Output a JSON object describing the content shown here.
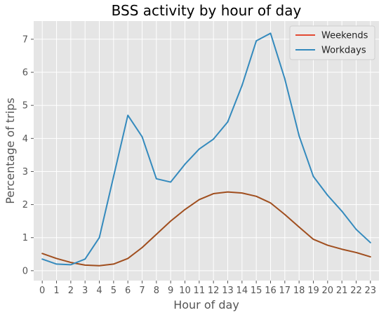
{
  "chart_data": {
    "type": "line",
    "title": "BSS activity by hour of day",
    "xlabel": "Hour of day",
    "ylabel": "Percentage of trips",
    "x": [
      0,
      1,
      2,
      3,
      4,
      5,
      6,
      7,
      8,
      9,
      10,
      11,
      12,
      13,
      14,
      15,
      16,
      17,
      18,
      19,
      20,
      21,
      22,
      23
    ],
    "xticks": [
      "0",
      "1",
      "2",
      "3",
      "4",
      "5",
      "6",
      "7",
      "8",
      "9",
      "10",
      "11",
      "12",
      "13",
      "14",
      "15",
      "16",
      "17",
      "18",
      "19",
      "20",
      "21",
      "22",
      "23"
    ],
    "yticks": [
      0,
      1,
      2,
      3,
      4,
      5,
      6,
      7
    ],
    "ylim": [
      -0.3,
      7.55
    ],
    "xlim": [
      -0.6,
      23.6
    ],
    "grid": true,
    "legend_position": "top-right",
    "series": [
      {
        "name": "Weekends",
        "color": "#E24A33",
        "values": [
          0.52,
          0.37,
          0.25,
          0.17,
          0.15,
          0.2,
          0.37,
          0.7,
          1.1,
          1.5,
          1.85,
          2.15,
          2.33,
          2.38,
          2.35,
          2.25,
          2.05,
          1.7,
          1.32,
          0.95,
          0.77,
          0.65,
          0.55,
          0.42
        ]
      },
      {
        "name": "Workdays",
        "color": "#348ABD",
        "values": [
          0.35,
          0.2,
          0.18,
          0.35,
          1.0,
          2.85,
          4.7,
          4.05,
          2.78,
          2.68,
          3.22,
          3.68,
          3.98,
          4.5,
          5.6,
          6.95,
          7.18,
          5.8,
          4.08,
          2.85,
          2.28,
          1.8,
          1.25,
          0.85
        ]
      }
    ],
    "overlap_color": "#A04E1E"
  }
}
